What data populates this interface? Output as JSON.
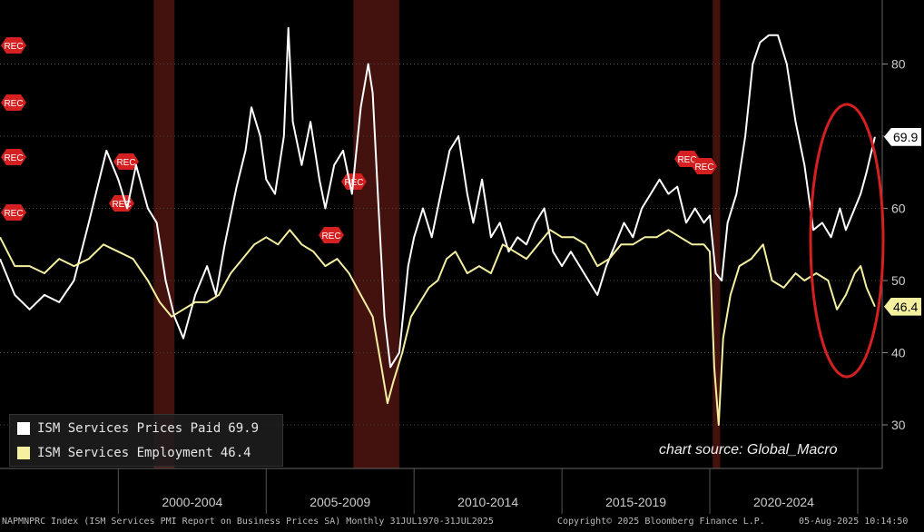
{
  "chart_data": {
    "type": "line",
    "x_range": [
      "1996-01",
      "2025-07"
    ],
    "ylim": [
      25,
      87
    ],
    "y_ticks": [
      30,
      40,
      50,
      60,
      70,
      80
    ],
    "x_axis_labels": [
      "2000-2004",
      "2005-2009",
      "2010-2014",
      "2015-2019",
      "2020-2024"
    ],
    "recession_shading": [
      {
        "start": 2001.2,
        "end": 2001.9
      },
      {
        "start": 2007.95,
        "end": 2009.5
      },
      {
        "start": 2020.1,
        "end": 2020.35
      }
    ],
    "rec_marker_label": "REC",
    "series": [
      {
        "name": "ISM Services Prices Paid",
        "color": "#ffffff",
        "last_value": "69.9",
        "points": [
          [
            1996.0,
            53
          ],
          [
            1996.5,
            48
          ],
          [
            1997.0,
            46
          ],
          [
            1997.5,
            48
          ],
          [
            1998.0,
            47
          ],
          [
            1998.5,
            50
          ],
          [
            1999.0,
            58
          ],
          [
            1999.3,
            63
          ],
          [
            1999.6,
            68
          ],
          [
            2000.0,
            64
          ],
          [
            2000.3,
            60
          ],
          [
            2000.6,
            66
          ],
          [
            2001.0,
            60
          ],
          [
            2001.3,
            58
          ],
          [
            2001.6,
            50
          ],
          [
            2001.9,
            45
          ],
          [
            2002.2,
            42
          ],
          [
            2002.6,
            48
          ],
          [
            2003.0,
            52
          ],
          [
            2003.3,
            48
          ],
          [
            2003.6,
            55
          ],
          [
            2004.0,
            63
          ],
          [
            2004.3,
            68
          ],
          [
            2004.5,
            74
          ],
          [
            2004.8,
            70
          ],
          [
            2005.0,
            64
          ],
          [
            2005.3,
            62
          ],
          [
            2005.6,
            70
          ],
          [
            2005.75,
            85
          ],
          [
            2005.9,
            72
          ],
          [
            2006.2,
            66
          ],
          [
            2006.5,
            72
          ],
          [
            2006.8,
            64
          ],
          [
            2007.0,
            60
          ],
          [
            2007.3,
            66
          ],
          [
            2007.6,
            68
          ],
          [
            2007.9,
            62
          ],
          [
            2008.2,
            74
          ],
          [
            2008.45,
            80
          ],
          [
            2008.6,
            76
          ],
          [
            2008.8,
            60
          ],
          [
            2009.0,
            45
          ],
          [
            2009.2,
            38
          ],
          [
            2009.5,
            40
          ],
          [
            2009.8,
            52
          ],
          [
            2010.0,
            56
          ],
          [
            2010.3,
            60
          ],
          [
            2010.6,
            56
          ],
          [
            2010.9,
            62
          ],
          [
            2011.2,
            68
          ],
          [
            2011.5,
            70
          ],
          [
            2011.8,
            62
          ],
          [
            2012.0,
            58
          ],
          [
            2012.3,
            64
          ],
          [
            2012.6,
            56
          ],
          [
            2012.9,
            58
          ],
          [
            2013.2,
            54
          ],
          [
            2013.5,
            56
          ],
          [
            2013.8,
            55
          ],
          [
            2014.1,
            58
          ],
          [
            2014.4,
            60
          ],
          [
            2014.7,
            54
          ],
          [
            2015.0,
            52
          ],
          [
            2015.3,
            54
          ],
          [
            2015.6,
            52
          ],
          [
            2015.9,
            50
          ],
          [
            2016.2,
            48
          ],
          [
            2016.5,
            52
          ],
          [
            2016.8,
            55
          ],
          [
            2017.1,
            58
          ],
          [
            2017.4,
            56
          ],
          [
            2017.7,
            60
          ],
          [
            2018.0,
            62
          ],
          [
            2018.3,
            64
          ],
          [
            2018.6,
            62
          ],
          [
            2018.9,
            63
          ],
          [
            2019.2,
            58
          ],
          [
            2019.5,
            60
          ],
          [
            2019.8,
            58
          ],
          [
            2020.0,
            59
          ],
          [
            2020.2,
            51
          ],
          [
            2020.4,
            50
          ],
          [
            2020.6,
            58
          ],
          [
            2020.9,
            62
          ],
          [
            2021.2,
            70
          ],
          [
            2021.45,
            80
          ],
          [
            2021.7,
            83
          ],
          [
            2022.0,
            84
          ],
          [
            2022.3,
            84
          ],
          [
            2022.6,
            80
          ],
          [
            2022.9,
            72
          ],
          [
            2023.2,
            66
          ],
          [
            2023.5,
            57
          ],
          [
            2023.8,
            58
          ],
          [
            2024.1,
            56
          ],
          [
            2024.4,
            60
          ],
          [
            2024.6,
            57
          ],
          [
            2024.9,
            60
          ],
          [
            2025.1,
            62
          ],
          [
            2025.3,
            65
          ],
          [
            2025.58,
            69.9
          ]
        ]
      },
      {
        "name": "ISM Services Employment",
        "color": "#f4f0a0",
        "last_value": "46.4",
        "points": [
          [
            1996.0,
            56
          ],
          [
            1996.5,
            52
          ],
          [
            1997.0,
            52
          ],
          [
            1997.5,
            51
          ],
          [
            1998.0,
            53
          ],
          [
            1998.5,
            52
          ],
          [
            1999.0,
            53
          ],
          [
            1999.5,
            55
          ],
          [
            2000.0,
            54
          ],
          [
            2000.5,
            53
          ],
          [
            2001.0,
            50
          ],
          [
            2001.4,
            47
          ],
          [
            2001.8,
            45
          ],
          [
            2002.2,
            46
          ],
          [
            2002.6,
            47
          ],
          [
            2003.0,
            47
          ],
          [
            2003.4,
            48
          ],
          [
            2003.8,
            51
          ],
          [
            2004.2,
            53
          ],
          [
            2004.6,
            55
          ],
          [
            2005.0,
            56
          ],
          [
            2005.4,
            55
          ],
          [
            2005.8,
            57
          ],
          [
            2006.2,
            55
          ],
          [
            2006.6,
            54
          ],
          [
            2007.0,
            52
          ],
          [
            2007.4,
            53
          ],
          [
            2007.8,
            51
          ],
          [
            2008.2,
            48
          ],
          [
            2008.6,
            45
          ],
          [
            2008.9,
            38
          ],
          [
            2009.1,
            33
          ],
          [
            2009.3,
            36
          ],
          [
            2009.6,
            40
          ],
          [
            2009.9,
            45
          ],
          [
            2010.2,
            47
          ],
          [
            2010.5,
            49
          ],
          [
            2010.8,
            50
          ],
          [
            2011.1,
            53
          ],
          [
            2011.4,
            54
          ],
          [
            2011.8,
            51
          ],
          [
            2012.2,
            52
          ],
          [
            2012.6,
            51
          ],
          [
            2013.0,
            55
          ],
          [
            2013.4,
            54
          ],
          [
            2013.8,
            53
          ],
          [
            2014.2,
            55
          ],
          [
            2014.6,
            57
          ],
          [
            2015.0,
            56
          ],
          [
            2015.4,
            56
          ],
          [
            2015.8,
            55
          ],
          [
            2016.2,
            52
          ],
          [
            2016.6,
            53
          ],
          [
            2017.0,
            55
          ],
          [
            2017.4,
            55
          ],
          [
            2017.8,
            56
          ],
          [
            2018.2,
            56
          ],
          [
            2018.6,
            57
          ],
          [
            2019.0,
            56
          ],
          [
            2019.4,
            55
          ],
          [
            2019.8,
            55
          ],
          [
            2020.0,
            54
          ],
          [
            2020.15,
            38
          ],
          [
            2020.3,
            30
          ],
          [
            2020.45,
            42
          ],
          [
            2020.7,
            48
          ],
          [
            2021.0,
            52
          ],
          [
            2021.4,
            53
          ],
          [
            2021.8,
            55
          ],
          [
            2022.1,
            50
          ],
          [
            2022.5,
            49
          ],
          [
            2022.9,
            51
          ],
          [
            2023.2,
            50
          ],
          [
            2023.6,
            51
          ],
          [
            2024.0,
            50
          ],
          [
            2024.3,
            46
          ],
          [
            2024.6,
            48
          ],
          [
            2024.9,
            51
          ],
          [
            2025.1,
            52
          ],
          [
            2025.3,
            49
          ],
          [
            2025.58,
            46.4
          ]
        ]
      }
    ]
  },
  "legend": [
    {
      "label": "ISM Services Prices Paid",
      "value": "69.9",
      "color": "#ffffff"
    },
    {
      "label": "ISM Services Employment",
      "value": "46.4",
      "color": "#f4f0a0"
    }
  ],
  "source_note": "chart source: Global_Macro",
  "footer": {
    "index": "NAPMNPRC Index (ISM Services PMI Report on Business Prices SA) Monthly 31JUL1970-31JUL2025",
    "copyright": "Copyright© 2025 Bloomberg Finance L.P.",
    "timestamp": "05-Aug-2025 10:14:50"
  },
  "colors": {
    "background": "#000000",
    "recession_band": "#4a1410",
    "highlight_ellipse": "#d42020",
    "rec_marker": "#d42020"
  }
}
